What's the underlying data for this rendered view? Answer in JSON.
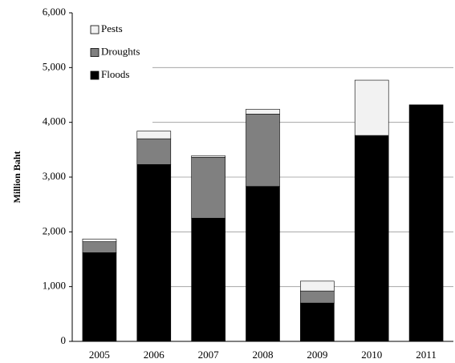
{
  "chart_data": {
    "type": "stacked_bar",
    "y_label": "Million Baht",
    "categories": [
      "2005",
      "2006",
      "2007",
      "2008",
      "2009",
      "2010",
      "2011"
    ],
    "series": [
      {
        "name": "Floods",
        "color": "#000000",
        "values": [
          1620,
          3230,
          2250,
          2830,
          700,
          3760,
          4320
        ]
      },
      {
        "name": "Droughts",
        "color": "#808080",
        "values": [
          200,
          470,
          1110,
          1320,
          220,
          0,
          0
        ]
      },
      {
        "name": "Pests",
        "color": "#f2f2f2",
        "values": [
          50,
          140,
          30,
          90,
          180,
          1010,
          0
        ]
      }
    ],
    "ylim": [
      0,
      6000
    ],
    "yticks": [
      0,
      {
        "value": 1000,
        "label": "1,000"
      },
      {
        "value": 2000,
        "label": "2,000"
      },
      {
        "value": 3000,
        "label": "3,000"
      },
      {
        "value": 4000,
        "label": "4,000"
      },
      {
        "value": 5000,
        "label": "5,000"
      },
      {
        "value": 6000,
        "label": "6,000"
      }
    ],
    "grid": true,
    "legend": "upper-left"
  }
}
